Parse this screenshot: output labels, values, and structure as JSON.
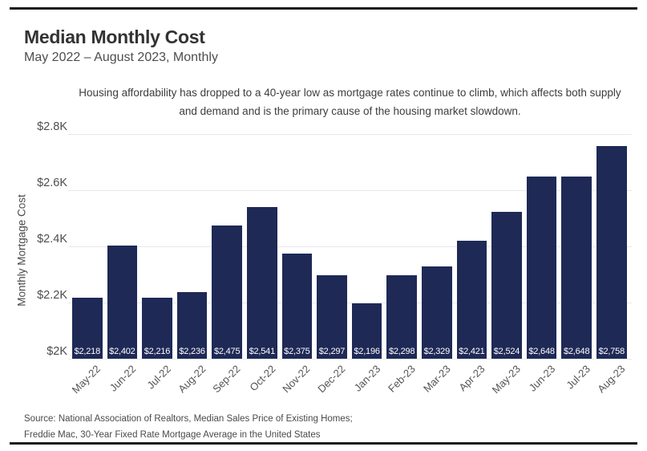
{
  "header": {
    "title": "Median Monthly Cost",
    "subtitle": "May 2022 – August 2023, Monthly"
  },
  "annotation": {
    "line1": "Housing affordability has dropped to a 40-year low as mortgage rates continue to climb, which affects both supply",
    "line2": "and demand and is the primary cause of the housing market slowdown."
  },
  "chart_data": {
    "type": "bar",
    "title": "Median Monthly Cost",
    "subtitle": "May 2022 – August 2023, Monthly",
    "categories": [
      "May-22",
      "Jun-22",
      "Jul-22",
      "Aug-22",
      "Sep-22",
      "Oct-22",
      "Nov-22",
      "Dec-22",
      "Jan-23",
      "Feb-23",
      "Mar-23",
      "Apr-23",
      "May-23",
      "Jun-23",
      "Jul-23",
      "Aug-23"
    ],
    "values": [
      2218,
      2402,
      2216,
      2236,
      2475,
      2541,
      2375,
      2297,
      2196,
      2298,
      2329,
      2421,
      2524,
      2648,
      2648,
      2758
    ],
    "bar_labels": [
      "$2,218",
      "$2,402",
      "$2,216",
      "$2,236",
      "$2,475",
      "$2,541",
      "$2,375",
      "$2,297",
      "$2,196",
      "$2,298",
      "$2,329",
      "$2,421",
      "$2,524",
      "$2,648",
      "$2,648",
      "$2,758"
    ],
    "xlabel": "",
    "ylabel": "Monthly Mortgage Cost",
    "ylim": [
      2000,
      2800
    ],
    "yticks": [
      2000,
      2200,
      2400,
      2600,
      2800
    ],
    "ytick_labels": [
      "$2K",
      "$2.2K",
      "$2.4K",
      "$2.6K",
      "$2.8K"
    ],
    "grid": "horizontal",
    "legend": "none"
  },
  "colors": {
    "bar": "#1e2956",
    "bar_label_text": "#ffffff",
    "gridline": "#e8e8e8",
    "rule": "#1c1c1c"
  },
  "footer": {
    "source_line1": "Source: National Association of Realtors, Median Sales Price of Existing Homes;",
    "source_line2": "Freddie Mac, 30-Year Fixed Rate Mortgage Average in the United States"
  }
}
